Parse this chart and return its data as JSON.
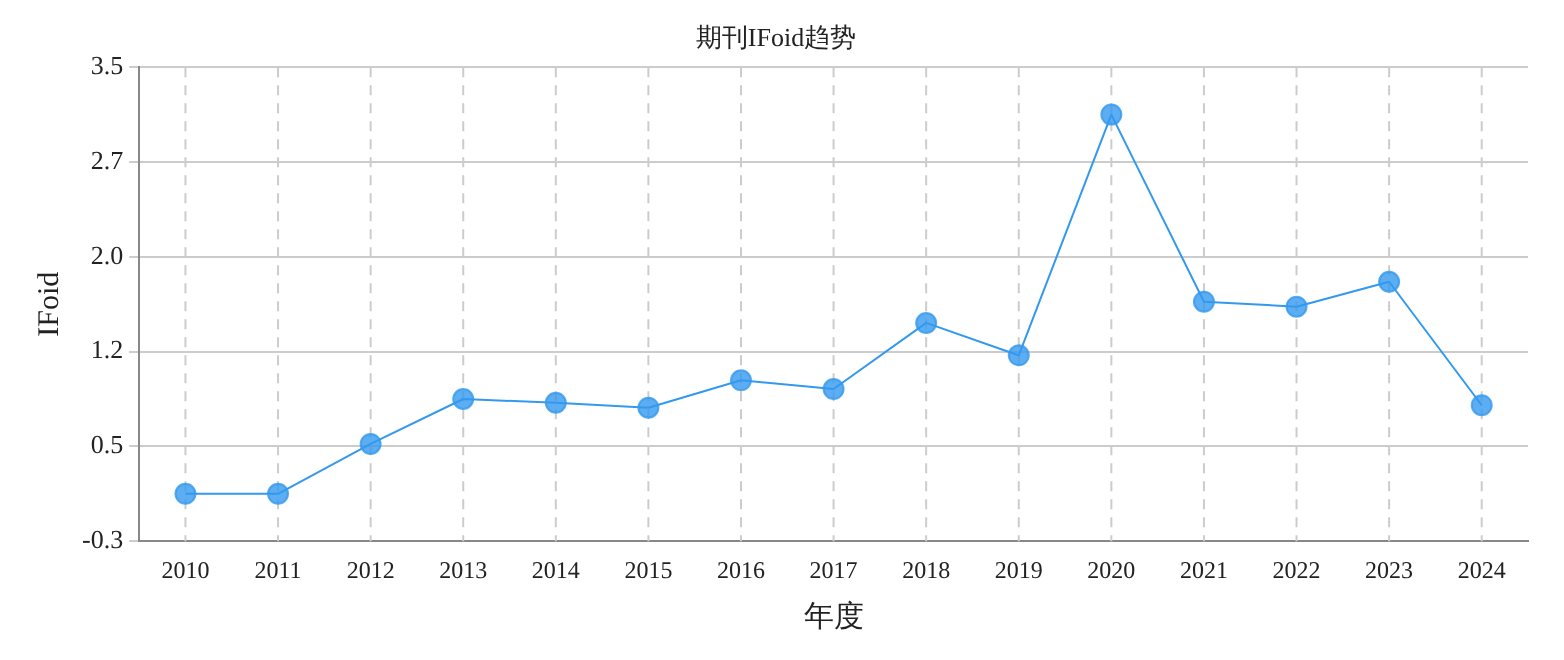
{
  "chart_data": {
    "type": "line",
    "title": "期刊IFoid趋势",
    "xlabel": "年度",
    "ylabel": "IFoid",
    "categories": [
      "2010",
      "2011",
      "2012",
      "2013",
      "2014",
      "2015",
      "2016",
      "2017",
      "2018",
      "2019",
      "2020",
      "2021",
      "2022",
      "2023",
      "2024"
    ],
    "series": [
      {
        "color": "#3399ee",
        "values": [
          0.08,
          0.08,
          0.48,
          0.84,
          0.81,
          0.77,
          0.99,
          0.92,
          1.45,
          1.19,
          3.12,
          1.62,
          1.58,
          1.78,
          0.79
        ]
      }
    ],
    "ylim": [
      -0.3,
      3.5
    ],
    "yticks": [
      {
        "value": -0.3,
        "label": "-0.3"
      },
      {
        "value": 0.46,
        "label": "0.5"
      },
      {
        "value": 1.22,
        "label": "1.2"
      },
      {
        "value": 1.98,
        "label": "2.0"
      },
      {
        "value": 2.74,
        "label": "2.7"
      },
      {
        "value": 3.5,
        "label": "3.5"
      }
    ],
    "grid": true,
    "marker": "circle",
    "line_style": "solid",
    "legend": false
  }
}
